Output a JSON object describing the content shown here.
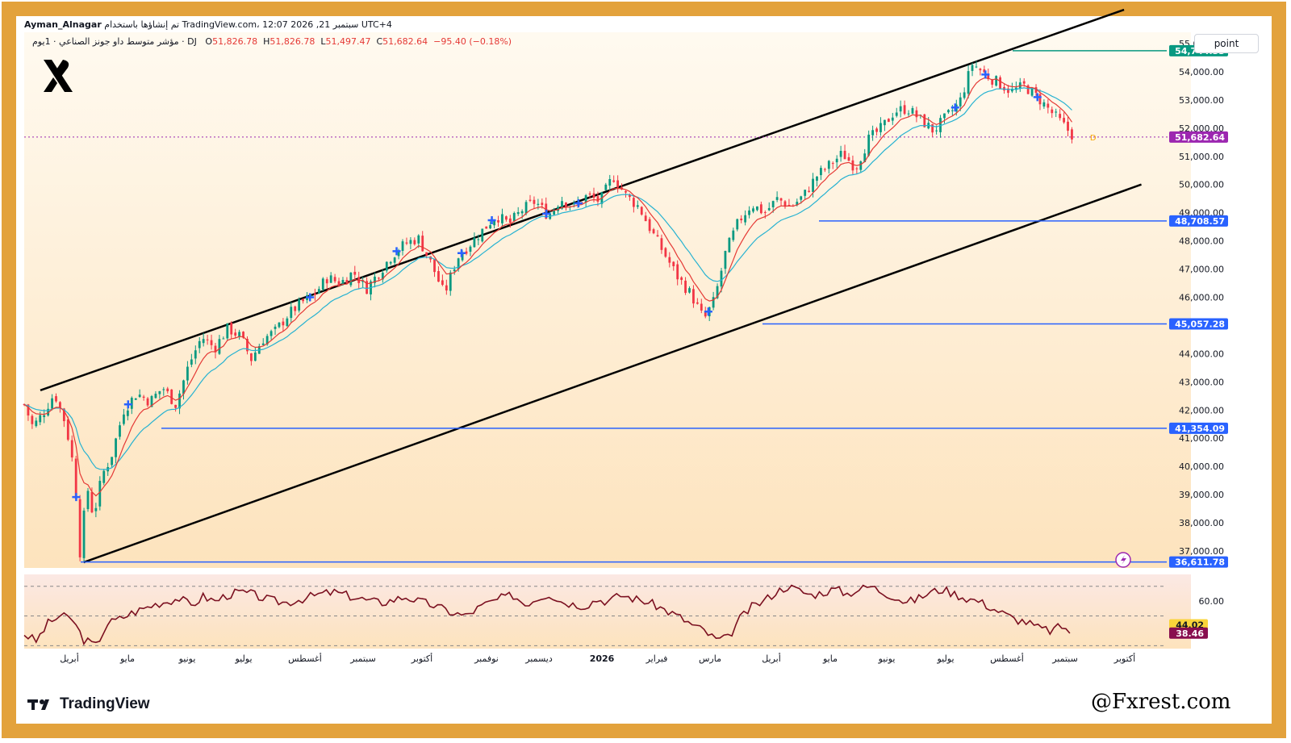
{
  "header": {
    "author": "Ayman_Alnagar",
    "published_note": "تم إنشاؤها باستخدام TradingView.com، 12:07 2026 ,21 سبتمبر UTC+4",
    "symbol_title": "مؤشر متوسط داو جونز الصناعي · 1يوم · DJ",
    "open_label": "O",
    "open": "51,826.78",
    "high_label": "H",
    "high": "51,826.78",
    "low_label": "L",
    "low": "51,497.47",
    "close_label": "C",
    "close": "51,682.64",
    "change": "−95.40 (−0.18%)"
  },
  "toolbar": {
    "scale_button": "point"
  },
  "brand": {
    "tradingview": "TradingView",
    "handle": "@Fxrest.com"
  },
  "chart_data": {
    "type": "line",
    "title": "مؤشر متوسط داو جونز الصناعي",
    "interval": "1D",
    "y_axis": {
      "ticks": [
        "37,000.00",
        "38,000.00",
        "39,000.00",
        "40,000.00",
        "41,000.00",
        "42,000.00",
        "43,000.00",
        "44,000.00",
        "45,000.00",
        "46,000.00",
        "47,000.00",
        "48,000.00",
        "49,000.00",
        "50,000.00",
        "51,000.00",
        "52,000.00",
        "53,000.00",
        "54,000.00",
        "55,000.00"
      ],
      "ylim": [
        36400,
        55400
      ]
    },
    "x_axis": {
      "ticks": [
        "أبريل",
        "مايو",
        "يونيو",
        "يوليو",
        "أغسطس",
        "سبتمبر",
        "أكتوبر",
        "نوفمبر",
        "ديسمبر",
        "2026",
        "فبراير",
        "مارس",
        "أبريل",
        "مايو",
        "يونيو",
        "يوليو",
        "أغسطس",
        "سبتمبر",
        "أكتوبر"
      ]
    },
    "series": [
      {
        "name": "DJ",
        "style": "candles-approx",
        "color": "#089981",
        "points": [
          [
            0,
            42200
          ],
          [
            10,
            41400
          ],
          [
            22,
            41900
          ],
          [
            35,
            42600
          ],
          [
            48,
            41500
          ],
          [
            58,
            39800
          ],
          [
            65,
            36700
          ],
          [
            72,
            39400
          ],
          [
            80,
            38200
          ],
          [
            90,
            39700
          ],
          [
            100,
            40300
          ],
          [
            115,
            42000
          ],
          [
            130,
            42600
          ],
          [
            145,
            42300
          ],
          [
            160,
            42800
          ],
          [
            175,
            42200
          ],
          [
            190,
            43600
          ],
          [
            205,
            44600
          ],
          [
            220,
            44200
          ],
          [
            235,
            44900
          ],
          [
            250,
            44600
          ],
          [
            262,
            43800
          ],
          [
            275,
            44500
          ],
          [
            290,
            44800
          ],
          [
            305,
            45400
          ],
          [
            320,
            45800
          ],
          [
            335,
            46100
          ],
          [
            350,
            46700
          ],
          [
            365,
            46500
          ],
          [
            380,
            46900
          ],
          [
            395,
            46300
          ],
          [
            410,
            46900
          ],
          [
            425,
            47500
          ],
          [
            440,
            47900
          ],
          [
            455,
            48100
          ],
          [
            470,
            47200
          ],
          [
            485,
            46100
          ],
          [
            500,
            47400
          ],
          [
            515,
            47900
          ],
          [
            530,
            48400
          ],
          [
            545,
            48900
          ],
          [
            560,
            48600
          ],
          [
            575,
            49100
          ],
          [
            590,
            49400
          ],
          [
            605,
            48900
          ],
          [
            620,
            49500
          ],
          [
            635,
            49200
          ],
          [
            650,
            49600
          ],
          [
            665,
            49400
          ],
          [
            680,
            50300
          ],
          [
            695,
            49600
          ],
          [
            710,
            49200
          ],
          [
            725,
            48300
          ],
          [
            740,
            47500
          ],
          [
            755,
            46700
          ],
          [
            770,
            46100
          ],
          [
            785,
            45200
          ],
          [
            797,
            45900
          ],
          [
            810,
            47600
          ],
          [
            825,
            48700
          ],
          [
            840,
            49300
          ],
          [
            855,
            49000
          ],
          [
            870,
            49500
          ],
          [
            885,
            49200
          ],
          [
            900,
            49600
          ],
          [
            915,
            50300
          ],
          [
            930,
            50700
          ],
          [
            945,
            51100
          ],
          [
            960,
            50600
          ],
          [
            975,
            51600
          ],
          [
            990,
            52000
          ],
          [
            1005,
            52600
          ],
          [
            1020,
            52700
          ],
          [
            1035,
            52300
          ],
          [
            1050,
            51900
          ],
          [
            1065,
            52400
          ],
          [
            1080,
            52900
          ],
          [
            1095,
            54300
          ],
          [
            1110,
            53900
          ],
          [
            1125,
            53600
          ],
          [
            1140,
            53300
          ],
          [
            1155,
            53500
          ],
          [
            1170,
            53100
          ],
          [
            1185,
            52600
          ],
          [
            1200,
            52100
          ],
          [
            1212,
            51700
          ]
        ]
      },
      {
        "name": "",
        "style": "ema-fast",
        "color": "#e53935"
      },
      {
        "name": "",
        "style": "ema-slow",
        "color": "#26b2d1"
      }
    ],
    "levels": [
      {
        "value": 54744.33,
        "label": "54,744.33",
        "color": "#089981"
      },
      {
        "value": 51682.64,
        "label": "51,682.64",
        "color": "#9c27b0"
      },
      {
        "value": 48708.57,
        "label": "48,708.57",
        "color": "#2962ff"
      },
      {
        "value": 45057.28,
        "label": "45,057.28",
        "color": "#2962ff"
      },
      {
        "value": 41354.09,
        "label": "41,354.09",
        "color": "#2962ff"
      },
      {
        "value": 36611.78,
        "label": "36,611.78",
        "color": "#2962ff"
      }
    ],
    "channel": {
      "upper": [
        [
          0,
          42700
        ],
        [
          1270,
          56200
        ]
      ],
      "lower": [
        [
          50,
          36600
        ],
        [
          1290,
          50000
        ]
      ]
    },
    "rsi": {
      "ticks": [
        "60.00"
      ],
      "labels": [
        {
          "value": 44.02,
          "label": "44.02",
          "color": "#f9d43a"
        },
        {
          "value": 38.46,
          "label": "38.46",
          "color": "#880e4f"
        }
      ],
      "ylim": [
        28,
        78
      ],
      "values": [
        38,
        33,
        45,
        50,
        48,
        34,
        30,
        45,
        48,
        52,
        55,
        58,
        60,
        62,
        57,
        63,
        60,
        64,
        66,
        65,
        62,
        60,
        59,
        61,
        63,
        65,
        66,
        64,
        62,
        60,
        59,
        61,
        63,
        60,
        58,
        55,
        52,
        50,
        55,
        59,
        62,
        64,
        58,
        62,
        65,
        60,
        58,
        57,
        61,
        60,
        64,
        62,
        60,
        57,
        53,
        49,
        44,
        40,
        34,
        35,
        48,
        56,
        60,
        66,
        70,
        67,
        64,
        66,
        68,
        65,
        68,
        70,
        66,
        63,
        59,
        62,
        66,
        68,
        65,
        62,
        60,
        56,
        52,
        48,
        46,
        42,
        40,
        43,
        38
      ]
    },
    "legend": "none"
  }
}
